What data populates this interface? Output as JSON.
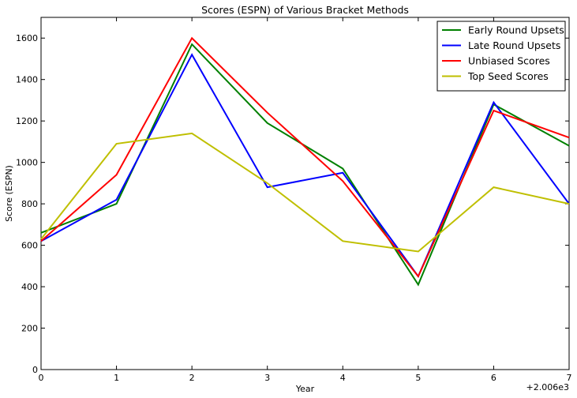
{
  "chart_data": {
    "type": "line",
    "title": "Scores (ESPN) of Various Bracket Methods",
    "xlabel": "Year",
    "ylabel": "Score (ESPN)",
    "x_offset_label": "+2.006e3",
    "x": [
      0,
      1,
      2,
      3,
      4,
      5,
      6,
      7
    ],
    "xlim": [
      0,
      7
    ],
    "ylim": [
      0,
      1700
    ],
    "x_ticks": [
      "0",
      "1",
      "2",
      "3",
      "4",
      "5",
      "6",
      "7"
    ],
    "y_ticks": [
      0,
      200,
      400,
      600,
      800,
      1000,
      1200,
      1400,
      1600
    ],
    "y_tick_labels": [
      "0",
      "200",
      "400",
      "600",
      "800",
      "1000",
      "1200",
      "1400",
      "1600"
    ],
    "grid": false,
    "legend_position": "top-right",
    "series": [
      {
        "name": "Early Round Upsets",
        "color": "#008000",
        "values": [
          660,
          800,
          1570,
          1190,
          970,
          410,
          1280,
          1080
        ]
      },
      {
        "name": "Late Round Upsets",
        "color": "#0000ff",
        "values": [
          620,
          820,
          1520,
          880,
          950,
          450,
          1290,
          800
        ]
      },
      {
        "name": "Unbiased Scores",
        "color": "#ff0000",
        "values": [
          620,
          940,
          1600,
          1240,
          910,
          450,
          1250,
          1120
        ]
      },
      {
        "name": "Top Seed Scores",
        "color": "#bfbf00",
        "values": [
          630,
          1090,
          1140,
          900,
          620,
          570,
          880,
          800
        ]
      }
    ]
  }
}
